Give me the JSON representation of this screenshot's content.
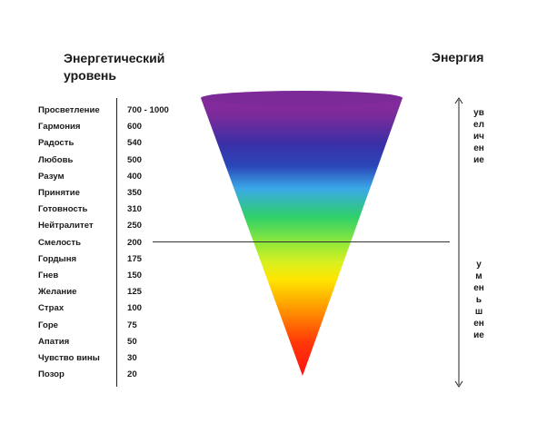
{
  "left_title": "Энергетический\nуровень",
  "right_title": "Энергия",
  "levels": [
    {
      "name": "Просветление",
      "value": "700 - 1000"
    },
    {
      "name": "Гармония",
      "value": "600"
    },
    {
      "name": "Радость",
      "value": "540"
    },
    {
      "name": "Любовь",
      "value": "500"
    },
    {
      "name": "Разум",
      "value": "400"
    },
    {
      "name": "Принятие",
      "value": "350"
    },
    {
      "name": "Готовность",
      "value": "310"
    },
    {
      "name": "Нейтралитет",
      "value": "250"
    },
    {
      "name": "Смелость",
      "value": "200"
    },
    {
      "name": "Гордыня",
      "value": "175"
    },
    {
      "name": "Гнев",
      "value": "150"
    },
    {
      "name": "Желание",
      "value": "125"
    },
    {
      "name": "Страх",
      "value": "100"
    },
    {
      "name": "Горе",
      "value": "75"
    },
    {
      "name": "Апатия",
      "value": "50"
    },
    {
      "name": "Чувство вины",
      "value": "30"
    },
    {
      "name": "Позор",
      "value": "20"
    }
  ],
  "energy_up_label": "увеличение",
  "energy_down_label": "уменьшение",
  "colors": {
    "violet": "#6e1f8f",
    "purple": "#8a2a9e",
    "blue": "#2a3fb0",
    "light_blue": "#3aa8e8",
    "green": "#2fd06a",
    "yellow_green": "#b8f02a",
    "yellow": "#ffe600",
    "orange": "#ff8a00",
    "red": "#ff1010"
  }
}
